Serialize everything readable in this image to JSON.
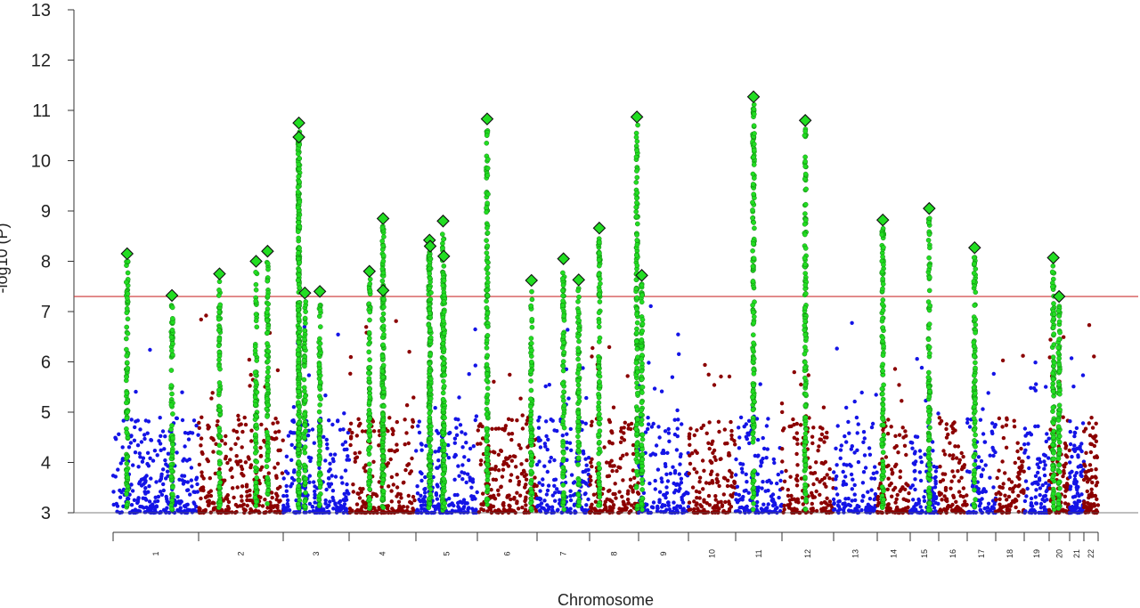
{
  "chart_data": {
    "type": "scatter",
    "xlabel": "Chromosome",
    "ylabel": "-log10 (P)",
    "ylim": [
      3,
      13
    ],
    "yticks": [
      3,
      4,
      5,
      6,
      7,
      8,
      9,
      10,
      11,
      12,
      13
    ],
    "significance_line": 7.3,
    "colors": {
      "odd_chromosome": "#1414e6",
      "even_chromosome": "#8b0000",
      "highlight": "#22dd22",
      "significance_line": "#cc3333"
    },
    "chromosomes": [
      {
        "label": "1",
        "start": 0,
        "end": 250
      },
      {
        "label": "2",
        "start": 250,
        "end": 493
      },
      {
        "label": "3",
        "start": 493,
        "end": 691
      },
      {
        "label": "4",
        "start": 691,
        "end": 882
      },
      {
        "label": "5",
        "start": 882,
        "end": 1063
      },
      {
        "label": "6",
        "start": 1063,
        "end": 1234
      },
      {
        "label": "7",
        "start": 1234,
        "end": 1393
      },
      {
        "label": "8",
        "start": 1393,
        "end": 1539
      },
      {
        "label": "9",
        "start": 1539,
        "end": 1680
      },
      {
        "label": "10",
        "start": 1680,
        "end": 1816
      },
      {
        "label": "11",
        "start": 1816,
        "end": 1951
      },
      {
        "label": "12",
        "start": 1951,
        "end": 2084
      },
      {
        "label": "13",
        "start": 2084,
        "end": 2200
      },
      {
        "label": "14",
        "start": 2200,
        "end": 2307
      },
      {
        "label": "15",
        "start": 2307,
        "end": 2409
      },
      {
        "label": "16",
        "start": 2409,
        "end": 2500
      },
      {
        "label": "17",
        "start": 2500,
        "end": 2581
      },
      {
        "label": "18",
        "start": 2581,
        "end": 2659
      },
      {
        "label": "19",
        "start": 2659,
        "end": 2718
      },
      {
        "label": "20",
        "start": 2718,
        "end": 2782
      },
      {
        "label": "21",
        "start": 2782,
        "end": 2829
      },
      {
        "label": "22",
        "start": 2829,
        "end": 2880
      }
    ],
    "lead_snps": [
      {
        "chr": "1",
        "pos": 41,
        "value": 8.15
      },
      {
        "chr": "1",
        "pos": 172,
        "value": 7.32
      },
      {
        "chr": "2",
        "pos": 60,
        "value": 7.75
      },
      {
        "chr": "2",
        "pos": 165,
        "value": 8.0
      },
      {
        "chr": "2",
        "pos": 198,
        "value": 8.2
      },
      {
        "chr": "3",
        "pos": 47,
        "value": 10.75
      },
      {
        "chr": "3",
        "pos": 47,
        "value": 10.47
      },
      {
        "chr": "3",
        "pos": 65,
        "value": 7.37
      },
      {
        "chr": "3",
        "pos": 110,
        "value": 7.4
      },
      {
        "chr": "4",
        "pos": 58,
        "value": 7.8
      },
      {
        "chr": "4",
        "pos": 97,
        "value": 8.85
      },
      {
        "chr": "4",
        "pos": 97,
        "value": 7.42
      },
      {
        "chr": "5",
        "pos": 40,
        "value": 8.42
      },
      {
        "chr": "5",
        "pos": 42,
        "value": 8.3
      },
      {
        "chr": "5",
        "pos": 80,
        "value": 8.8
      },
      {
        "chr": "5",
        "pos": 82,
        "value": 8.1
      },
      {
        "chr": "6",
        "pos": 28,
        "value": 10.83
      },
      {
        "chr": "6",
        "pos": 155,
        "value": 7.62
      },
      {
        "chr": "7",
        "pos": 80,
        "value": 8.05
      },
      {
        "chr": "7",
        "pos": 126,
        "value": 7.63
      },
      {
        "chr": "8",
        "pos": 29,
        "value": 8.66
      },
      {
        "chr": "8",
        "pos": 141,
        "value": 10.87
      },
      {
        "chr": "9",
        "pos": 9,
        "value": 7.72
      },
      {
        "chr": "11",
        "pos": 52,
        "value": 11.27
      },
      {
        "chr": "12",
        "pos": 60,
        "value": 10.8
      },
      {
        "chr": "14",
        "pos": 18,
        "value": 8.82
      },
      {
        "chr": "15",
        "pos": 68,
        "value": 9.05
      },
      {
        "chr": "17",
        "pos": 21,
        "value": 8.27
      },
      {
        "chr": "20",
        "pos": 13,
        "value": 8.07
      },
      {
        "chr": "20",
        "pos": 31,
        "value": 7.3
      }
    ]
  }
}
